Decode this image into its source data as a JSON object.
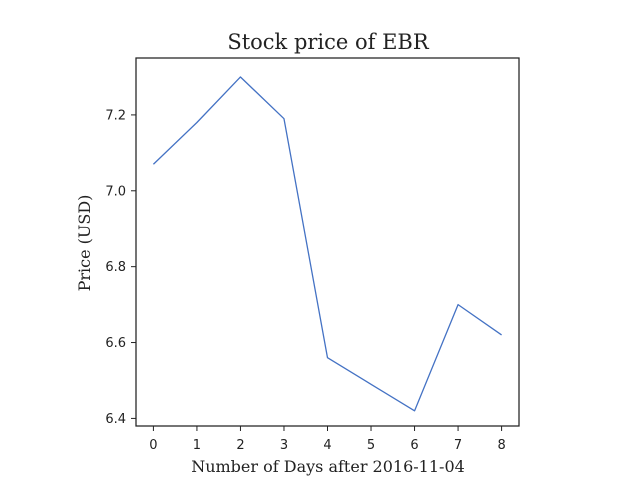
{
  "chart_data": {
    "type": "line",
    "title": "Stock price of EBR",
    "xlabel": "Number of Days after 2016-11-04",
    "ylabel": "Price (USD)",
    "x": [
      0,
      1,
      2,
      3,
      4,
      5,
      6,
      7,
      8
    ],
    "series": [
      {
        "values": [
          7.07,
          7.18,
          7.3,
          7.19,
          6.56,
          6.49,
          6.42,
          6.7,
          6.62
        ],
        "color": "#4472c4"
      }
    ],
    "xlim": [
      -0.4,
      8.4
    ],
    "ylim": [
      6.38,
      7.35
    ],
    "xticks": [
      0,
      1,
      2,
      3,
      4,
      5,
      6,
      7,
      8
    ],
    "xtick_labels": [
      "0",
      "1",
      "2",
      "3",
      "4",
      "5",
      "6",
      "7",
      "8"
    ],
    "yticks": [
      6.4,
      6.6,
      6.8,
      7.0,
      7.2
    ],
    "ytick_labels": [
      "6.4",
      "6.6",
      "6.8",
      "7.0",
      "7.2"
    ],
    "grid": false,
    "legend": false
  }
}
